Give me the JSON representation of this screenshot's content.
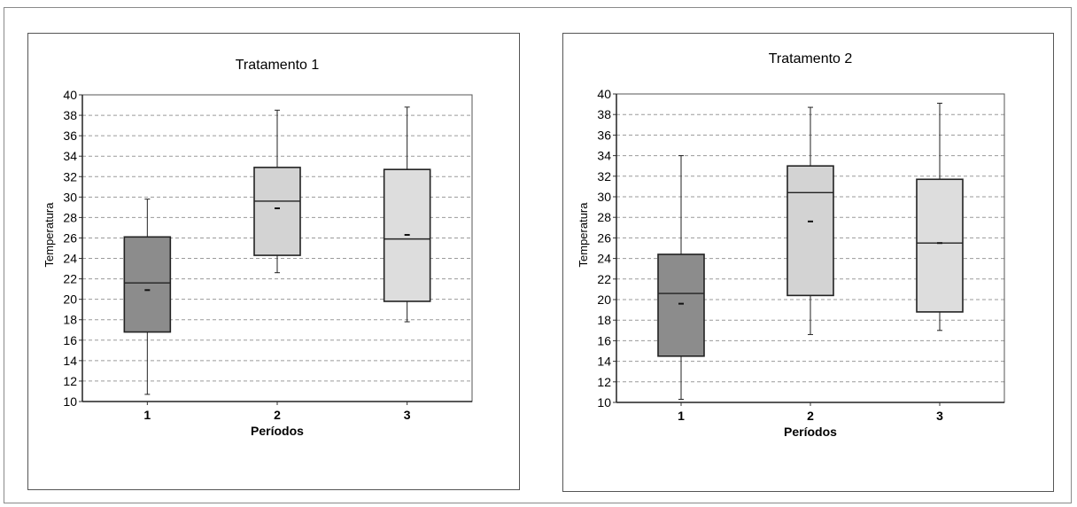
{
  "chart_data": [
    {
      "type": "box",
      "title": "Tratamento 1",
      "xlabel": "Períodos",
      "ylabel": "Temperatura",
      "ylim": [
        10,
        40
      ],
      "yticks": [
        "10",
        "12",
        "14",
        "16",
        "18",
        "20",
        "22",
        "24",
        "26",
        "28",
        "30",
        "32",
        "34",
        "36",
        "38",
        "40"
      ],
      "categories": [
        "1",
        "2",
        "3"
      ],
      "boxes": [
        {
          "category": "1",
          "min": 10.7,
          "q1": 16.8,
          "median": 21.6,
          "q3": 26.1,
          "max": 29.8,
          "mean": 20.9,
          "color": "#8c8c8c"
        },
        {
          "category": "2",
          "min": 22.6,
          "q1": 24.3,
          "median": 29.6,
          "q3": 32.9,
          "max": 38.5,
          "mean": 28.9,
          "color": "#d3d3d3"
        },
        {
          "category": "3",
          "min": 17.8,
          "q1": 19.8,
          "median": 25.9,
          "q3": 32.7,
          "max": 38.8,
          "mean": 26.3,
          "color": "#dddddd"
        }
      ],
      "grid": true
    },
    {
      "type": "box",
      "title": "Tratamento 2",
      "xlabel": "Períodos",
      "ylabel": "Temperatura",
      "ylim": [
        10,
        40
      ],
      "yticks": [
        "10",
        "12",
        "14",
        "16",
        "18",
        "20",
        "22",
        "24",
        "26",
        "28",
        "30",
        "32",
        "34",
        "36",
        "38",
        "40"
      ],
      "categories": [
        "1",
        "2",
        "3"
      ],
      "boxes": [
        {
          "category": "1",
          "min": 10.3,
          "q1": 14.5,
          "median": 20.6,
          "q3": 24.4,
          "max": 34.0,
          "mean": 19.6,
          "color": "#8c8c8c"
        },
        {
          "category": "2",
          "min": 16.6,
          "q1": 20.4,
          "median": 30.4,
          "q3": 33.0,
          "max": 38.7,
          "mean": 27.6,
          "color": "#d3d3d3"
        },
        {
          "category": "3",
          "min": 17.0,
          "q1": 18.8,
          "median": 25.5,
          "q3": 31.7,
          "max": 39.1,
          "mean": 25.5,
          "color": "#dddddd"
        }
      ],
      "grid": true
    }
  ]
}
